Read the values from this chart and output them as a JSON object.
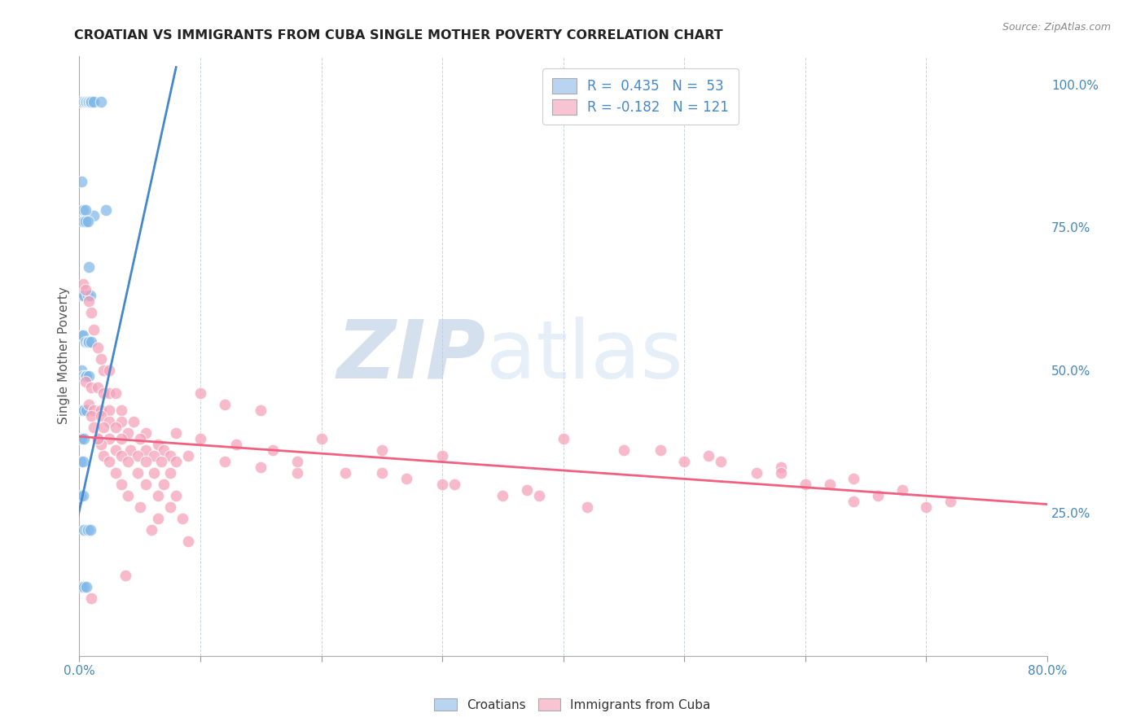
{
  "title": "CROATIAN VS IMMIGRANTS FROM CUBA SINGLE MOTHER POVERTY CORRELATION CHART",
  "source": "Source: ZipAtlas.com",
  "ylabel": "Single Mother Poverty",
  "ytick_labels": [
    "",
    "25.0%",
    "50.0%",
    "75.0%",
    "100.0%"
  ],
  "ytick_values": [
    0.0,
    0.25,
    0.5,
    0.75,
    1.0
  ],
  "xlim": [
    0.0,
    0.8
  ],
  "ylim": [
    0.0,
    1.05
  ],
  "bottom_legend": [
    "Croatians",
    "Immigrants from Cuba"
  ],
  "croatian_color": "#80b8e8",
  "cuba_color": "#f4a0b8",
  "croatian_line_color": "#4488cc",
  "cuba_line_color": "#f06080",
  "croatian_legend_color": "#b8d4f0",
  "cuba_legend_color": "#f8c4d4",
  "watermark_zip": "ZIP",
  "watermark_atlas": "atlas",
  "watermark_color_zip": "#b0c8e8",
  "watermark_color_atlas": "#c8d8f0",
  "background_color": "#ffffff",
  "grid_color": "#c8d4e4",
  "croatian_scatter_x": [
    0.001,
    0.004,
    0.005,
    0.006,
    0.007,
    0.008,
    0.009,
    0.01,
    0.012,
    0.018,
    0.002,
    0.012,
    0.003,
    0.005,
    0.006,
    0.003,
    0.005,
    0.007,
    0.008,
    0.002,
    0.004,
    0.007,
    0.009,
    0.002,
    0.003,
    0.005,
    0.007,
    0.008,
    0.01,
    0.002,
    0.003,
    0.005,
    0.006,
    0.008,
    0.001,
    0.003,
    0.004,
    0.006,
    0.001,
    0.002,
    0.004,
    0.001,
    0.003,
    0.001,
    0.003,
    0.004,
    0.007,
    0.009,
    0.002,
    0.004,
    0.006,
    0.022
  ],
  "croatian_scatter_y": [
    0.97,
    0.97,
    0.97,
    0.97,
    0.97,
    0.97,
    0.97,
    0.97,
    0.97,
    0.97,
    0.83,
    0.77,
    0.78,
    0.78,
    0.76,
    0.76,
    0.76,
    0.76,
    0.68,
    0.63,
    0.63,
    0.63,
    0.63,
    0.56,
    0.56,
    0.55,
    0.55,
    0.55,
    0.55,
    0.5,
    0.49,
    0.49,
    0.49,
    0.49,
    0.43,
    0.43,
    0.43,
    0.43,
    0.38,
    0.38,
    0.38,
    0.34,
    0.34,
    0.28,
    0.28,
    0.22,
    0.22,
    0.22,
    0.12,
    0.12,
    0.12,
    0.78
  ],
  "cuba_scatter_x": [
    0.003,
    0.005,
    0.008,
    0.01,
    0.012,
    0.015,
    0.018,
    0.02,
    0.005,
    0.01,
    0.015,
    0.02,
    0.025,
    0.03,
    0.008,
    0.012,
    0.018,
    0.025,
    0.035,
    0.01,
    0.018,
    0.025,
    0.035,
    0.045,
    0.012,
    0.02,
    0.03,
    0.04,
    0.055,
    0.015,
    0.025,
    0.035,
    0.05,
    0.065,
    0.018,
    0.03,
    0.042,
    0.055,
    0.07,
    0.02,
    0.035,
    0.048,
    0.062,
    0.075,
    0.025,
    0.04,
    0.055,
    0.068,
    0.08,
    0.03,
    0.048,
    0.062,
    0.075,
    0.035,
    0.055,
    0.07,
    0.04,
    0.065,
    0.08,
    0.05,
    0.075,
    0.065,
    0.085,
    0.1,
    0.12,
    0.15,
    0.08,
    0.1,
    0.13,
    0.16,
    0.09,
    0.12,
    0.15,
    0.18,
    0.2,
    0.25,
    0.3,
    0.18,
    0.22,
    0.27,
    0.25,
    0.31,
    0.37,
    0.3,
    0.38,
    0.35,
    0.42,
    0.4,
    0.48,
    0.52,
    0.45,
    0.53,
    0.58,
    0.5,
    0.58,
    0.64,
    0.56,
    0.62,
    0.68,
    0.6,
    0.66,
    0.72,
    0.64,
    0.7,
    0.06,
    0.09,
    0.038,
    0.01,
    0.025,
    0.015
  ],
  "cuba_scatter_y": [
    0.65,
    0.64,
    0.62,
    0.6,
    0.57,
    0.54,
    0.52,
    0.5,
    0.48,
    0.47,
    0.47,
    0.46,
    0.46,
    0.46,
    0.44,
    0.43,
    0.43,
    0.43,
    0.43,
    0.42,
    0.42,
    0.41,
    0.41,
    0.41,
    0.4,
    0.4,
    0.4,
    0.39,
    0.39,
    0.38,
    0.38,
    0.38,
    0.38,
    0.37,
    0.37,
    0.36,
    0.36,
    0.36,
    0.36,
    0.35,
    0.35,
    0.35,
    0.35,
    0.35,
    0.34,
    0.34,
    0.34,
    0.34,
    0.34,
    0.32,
    0.32,
    0.32,
    0.32,
    0.3,
    0.3,
    0.3,
    0.28,
    0.28,
    0.28,
    0.26,
    0.26,
    0.24,
    0.24,
    0.46,
    0.44,
    0.43,
    0.39,
    0.38,
    0.37,
    0.36,
    0.35,
    0.34,
    0.33,
    0.32,
    0.38,
    0.36,
    0.35,
    0.34,
    0.32,
    0.31,
    0.32,
    0.3,
    0.29,
    0.3,
    0.28,
    0.28,
    0.26,
    0.38,
    0.36,
    0.35,
    0.36,
    0.34,
    0.33,
    0.34,
    0.32,
    0.31,
    0.32,
    0.3,
    0.29,
    0.3,
    0.28,
    0.27,
    0.27,
    0.26,
    0.22,
    0.2,
    0.14,
    0.1,
    0.5,
    0.38
  ],
  "croatian_line_x": [
    -0.005,
    0.08
  ],
  "croatian_line_y": [
    0.205,
    1.03
  ],
  "cuba_line_x": [
    -0.01,
    0.8
  ],
  "cuba_line_y": [
    0.385,
    0.265
  ]
}
